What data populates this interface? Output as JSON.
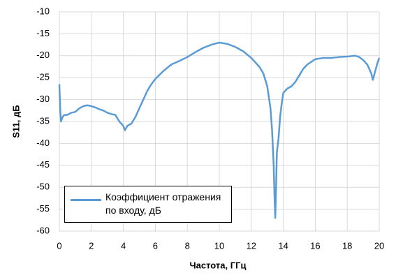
{
  "chart_data": {
    "type": "line",
    "xlabel": "Частота, ГГц",
    "ylabel": "S11, дБ",
    "x": [
      0,
      0.05,
      0.1,
      0.2,
      0.3,
      0.5,
      0.75,
      1,
      1.25,
      1.5,
      1.75,
      2,
      2.25,
      2.5,
      2.75,
      3,
      3.25,
      3.5,
      3.75,
      4,
      4.1,
      4.25,
      4.5,
      4.75,
      5,
      5.25,
      5.5,
      5.75,
      6,
      6.5,
      7,
      7.5,
      8,
      8.5,
      9,
      9.5,
      10,
      10.5,
      11,
      11.5,
      12,
      12.5,
      12.75,
      13,
      13.2,
      13.3,
      13.4,
      13.45,
      13.5,
      13.55,
      13.6,
      13.7,
      13.8,
      13.9,
      14,
      14.25,
      14.5,
      14.75,
      15,
      15.25,
      15.5,
      16,
      16.5,
      17,
      17.5,
      18,
      18.5,
      18.75,
      19,
      19.25,
      19.5,
      19.6,
      19.75,
      19.9,
      20
    ],
    "series": [
      {
        "name": "Коэффициент отражения по входу, дБ",
        "color": "#5b9bd5",
        "values": [
          -26.5,
          -32,
          -35,
          -34,
          -33.5,
          -33.5,
          -33,
          -32.8,
          -32,
          -31.5,
          -31.3,
          -31.5,
          -31.8,
          -32.2,
          -32.5,
          -33,
          -33.3,
          -33.5,
          -35,
          -36,
          -37,
          -36,
          -35.5,
          -34,
          -32,
          -30,
          -28,
          -26.5,
          -25.3,
          -23.5,
          -22,
          -21.2,
          -20.3,
          -19.2,
          -18.2,
          -17.5,
          -17,
          -17.3,
          -18,
          -19,
          -20.5,
          -22.5,
          -24,
          -27,
          -32,
          -37,
          -45,
          -52,
          -57,
          -50,
          -42,
          -39,
          -34,
          -31,
          -28.5,
          -27.5,
          -27,
          -26,
          -24.5,
          -23,
          -22,
          -20.8,
          -20.5,
          -20.5,
          -20.3,
          -20.2,
          -20,
          -20.3,
          -21,
          -22,
          -24,
          -25.5,
          -23.5,
          -21.5,
          -20.5
        ]
      }
    ],
    "xlim": [
      0,
      20
    ],
    "xticks": [
      0,
      2,
      4,
      6,
      8,
      10,
      12,
      14,
      16,
      18,
      20
    ],
    "ylim": [
      -60,
      -10
    ],
    "yticks": [
      -10,
      -15,
      -20,
      -25,
      -30,
      -35,
      -40,
      -45,
      -50,
      -55,
      -60
    ],
    "grid": true,
    "legend": "lower-left"
  }
}
